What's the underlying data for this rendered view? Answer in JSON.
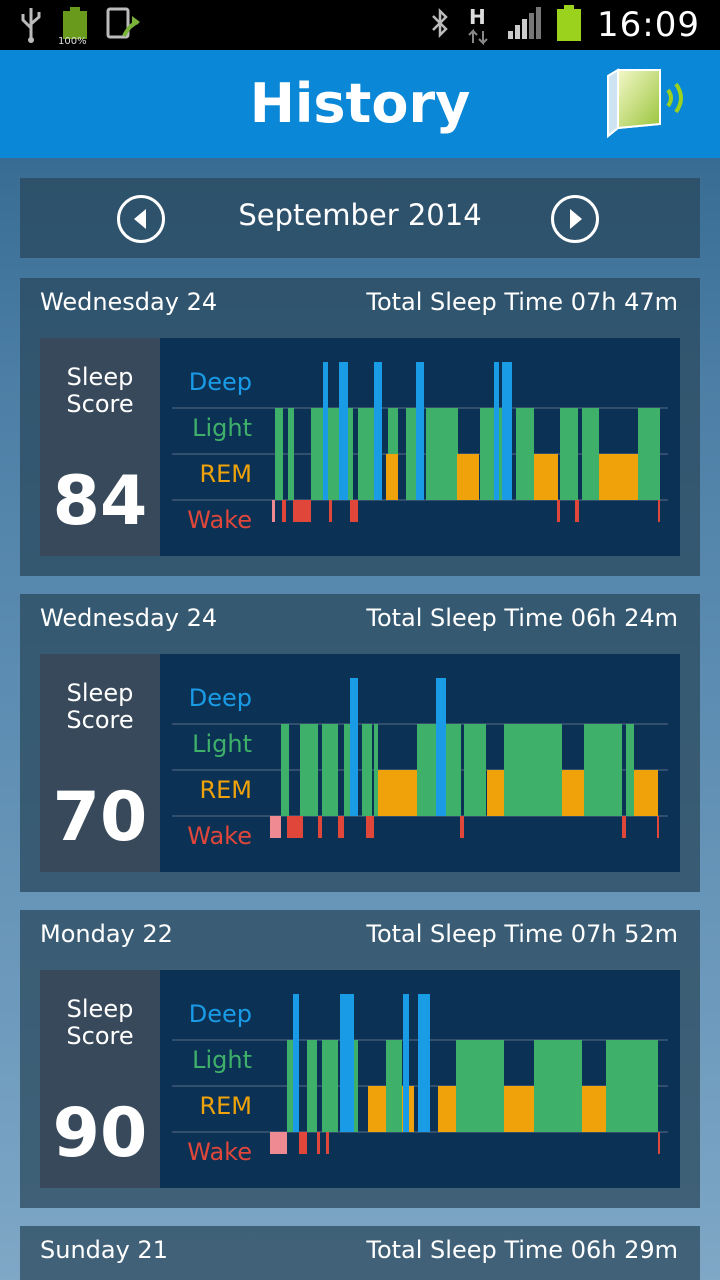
{
  "status_bar": {
    "battery_percent_label": "100%",
    "time": "16:09",
    "network_type": "H",
    "icons": [
      "usb-icon",
      "battery-icon",
      "sync-icon",
      "bluetooth-icon",
      "network-arrows-icon",
      "signal-icon",
      "battery-icon"
    ]
  },
  "header": {
    "title": "History",
    "device_icon": "sleep-device-wireless-icon"
  },
  "month_nav": {
    "label": "September 2014",
    "prev_icon": "chevron-left-icon",
    "next_icon": "chevron-right-icon"
  },
  "stage_labels": {
    "deep": "Deep",
    "light": "Light",
    "rem": "REM",
    "wake": "Wake"
  },
  "colors": {
    "deep": "#1a9be6",
    "light": "#3fb06a",
    "rem": "#efa20a",
    "wake": "#e0463a",
    "wake_pink": "#f08a92",
    "header": "#0a87d6",
    "chart_bg": "#0b3255"
  },
  "nights": [
    {
      "day": "Wednesday 24",
      "total_sleep": "Total Sleep Time 07h 47m",
      "score_label": "Sleep Score",
      "score": "84"
    },
    {
      "day": "Wednesday 24",
      "total_sleep": "Total Sleep Time 06h 24m",
      "score_label": "Sleep Score",
      "score": "70"
    },
    {
      "day": "Monday 22",
      "total_sleep": "Total Sleep Time 07h 52m",
      "score_label": "Sleep Score",
      "score": "90"
    },
    {
      "day": "Sunday 21",
      "total_sleep": "Total Sleep Time 06h 29m"
    }
  ]
}
